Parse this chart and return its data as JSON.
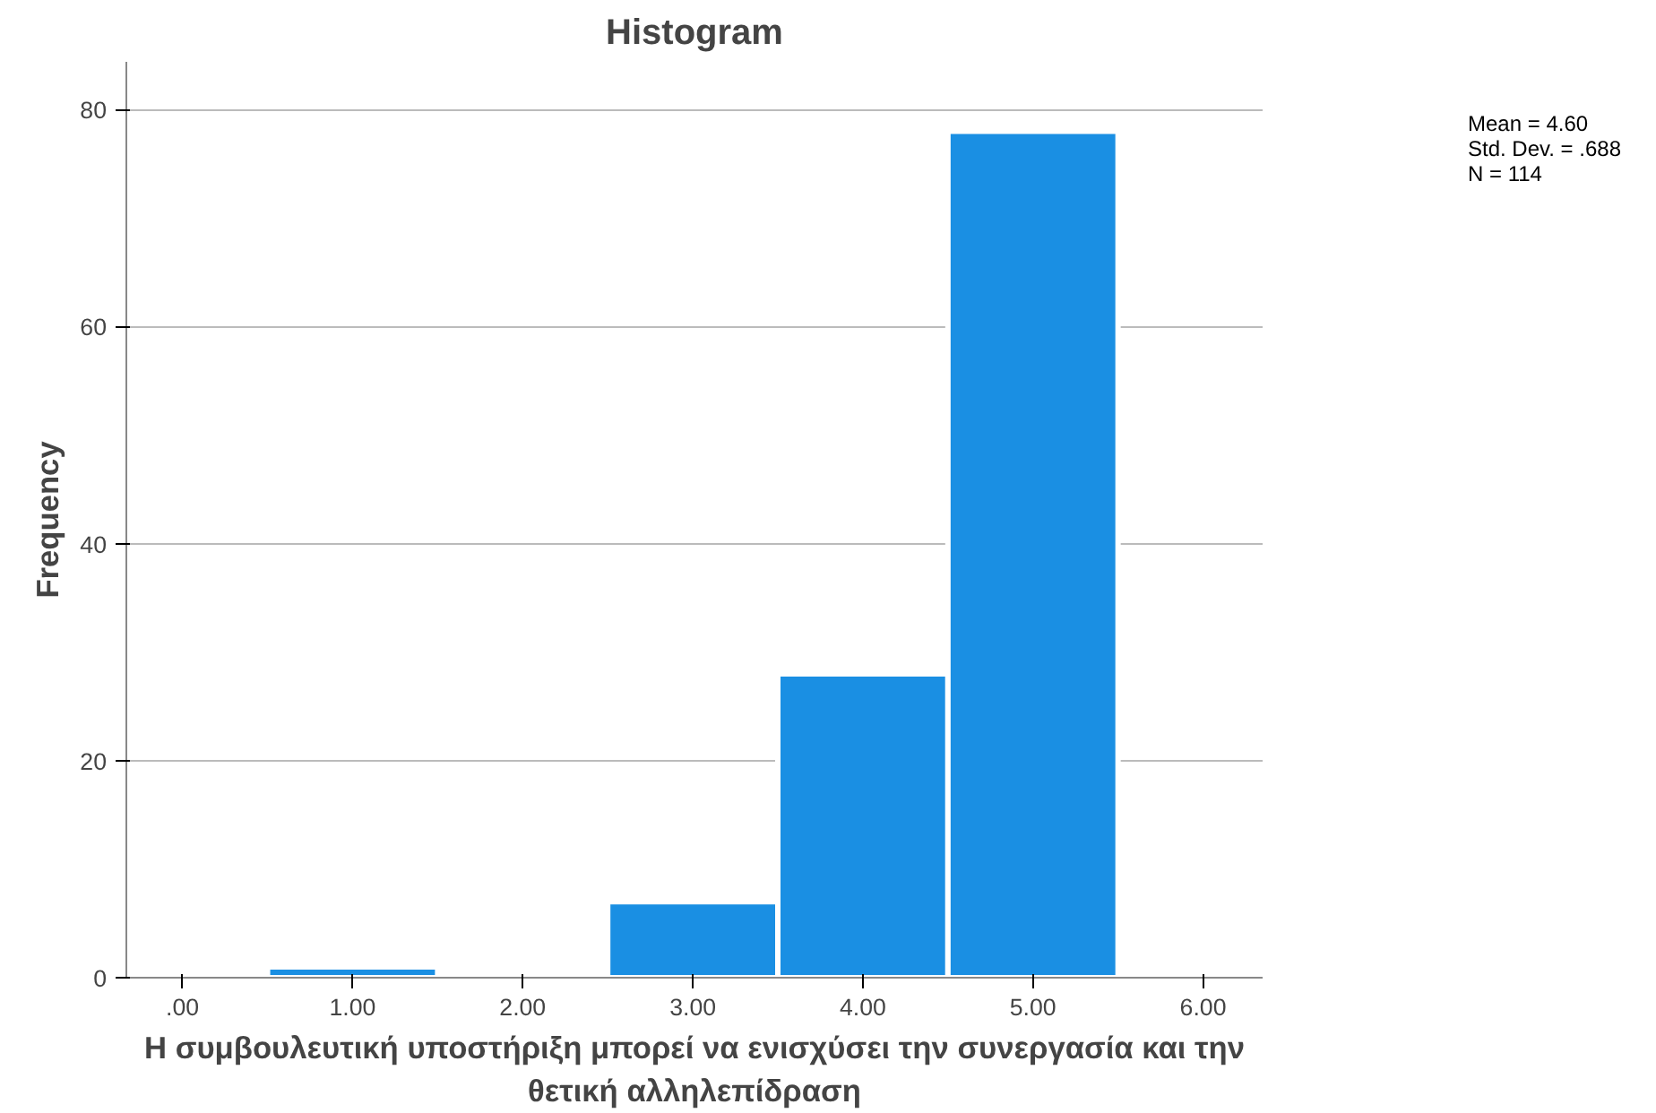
{
  "chart_data": {
    "type": "histogram",
    "title": "Histogram",
    "xlabel": "Η συμβουλευτική υποστήριξη μπορεί να ενισχύσει την συνεργασία και την θετική αλληλεπίδραση",
    "ylabel": "Frequency",
    "bins": [
      0.5,
      1.5,
      2.5,
      3.5,
      4.5,
      5.5
    ],
    "values": [
      1,
      0,
      7,
      28,
      78
    ],
    "color": "#1a8fe3",
    "xlim": [
      -0.33,
      6.35
    ],
    "ylim": [
      0,
      84.4
    ],
    "xticks": [
      {
        "value": 0,
        "label": ".00"
      },
      {
        "value": 1,
        "label": "1.00"
      },
      {
        "value": 2,
        "label": "2.00"
      },
      {
        "value": 3,
        "label": "3.00"
      },
      {
        "value": 4,
        "label": "4.00"
      },
      {
        "value": 5,
        "label": "5.00"
      },
      {
        "value": 6,
        "label": "6.00"
      }
    ],
    "yticks": [
      0,
      20,
      40,
      60,
      80
    ],
    "grid": "y",
    "annotations": [
      "Mean = 4.60",
      "Std. Dev. = .688",
      "N = 114"
    ]
  }
}
